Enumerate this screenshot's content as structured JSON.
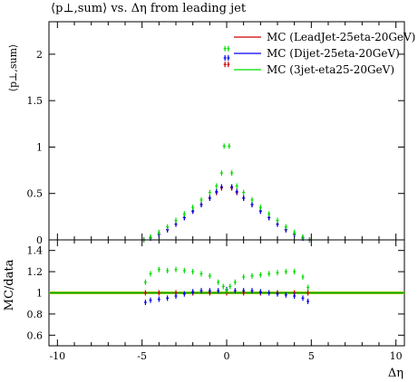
{
  "title": "⟨p⊥,sum⟩ vs. Δη from leading jet",
  "xlabel": "Δη",
  "ylabel_top": "⟨p⊥,sum⟩",
  "ylabel_ratio": "MC/data",
  "colors": {
    "lead": "#cc0000",
    "dijet": "#0000ee",
    "threejet": "#00dd00",
    "band": "#ffd700",
    "ref": "#00aa00"
  },
  "chart_data": [
    {
      "type": "scatter",
      "panel": "main",
      "xlim": [
        -10.5,
        10.5
      ],
      "ylim": [
        0,
        2.35
      ],
      "x_ticks": [
        -10,
        -5,
        0,
        5,
        10
      ],
      "y_ticks": [
        0,
        0.5,
        1,
        1.5,
        2
      ],
      "y_tick_labels": [
        "0",
        "0.5",
        "1",
        "1.5",
        "2"
      ],
      "legend_position": "top-right",
      "series": [
        {
          "name": "MC (LeadJet-25eta-20GeV)",
          "color": "#cc0000",
          "x": [
            -4.9,
            -4.5,
            -4.0,
            -3.5,
            -3.0,
            -2.5,
            -2.0,
            -1.5,
            -1.0,
            -0.6,
            -0.3,
            0.3,
            0.6,
            1.0,
            1.5,
            2.0,
            2.5,
            3.0,
            3.5,
            4.0,
            4.5,
            4.9,
            -0.1,
            0.1
          ],
          "y": [
            0.0,
            0.02,
            0.06,
            0.11,
            0.17,
            0.24,
            0.31,
            0.38,
            0.45,
            0.51,
            0.56,
            0.56,
            0.51,
            0.45,
            0.38,
            0.31,
            0.24,
            0.17,
            0.11,
            0.06,
            0.02,
            0.0,
            1.89,
            1.89
          ]
        },
        {
          "name": "MC (Dijet-25eta-20GeV)",
          "color": "#0000ee",
          "x": [
            -4.9,
            -4.5,
            -4.0,
            -3.5,
            -3.0,
            -2.5,
            -2.0,
            -1.5,
            -1.0,
            -0.6,
            -0.3,
            0.3,
            0.6,
            1.0,
            1.5,
            2.0,
            2.5,
            3.0,
            3.5,
            4.0,
            4.5,
            4.9,
            -0.1,
            0.1
          ],
          "y": [
            0.0,
            0.02,
            0.06,
            0.11,
            0.17,
            0.24,
            0.31,
            0.38,
            0.45,
            0.52,
            0.57,
            0.57,
            0.52,
            0.45,
            0.38,
            0.31,
            0.24,
            0.17,
            0.11,
            0.06,
            0.02,
            0.0,
            1.96,
            1.96
          ]
        },
        {
          "name": "MC (3jet-eta25-20GeV)",
          "color": "#00dd00",
          "x": [
            -4.9,
            -4.5,
            -4.0,
            -3.5,
            -3.0,
            -2.5,
            -2.0,
            -1.5,
            -1.0,
            -0.6,
            -0.3,
            -0.15,
            0.15,
            0.3,
            0.6,
            1.0,
            1.5,
            2.0,
            2.5,
            3.0,
            3.5,
            4.0,
            4.5,
            4.9,
            -0.1,
            0.1
          ],
          "y": [
            0.0,
            0.03,
            0.08,
            0.14,
            0.21,
            0.28,
            0.35,
            0.43,
            0.51,
            0.58,
            0.72,
            1.01,
            1.01,
            0.72,
            0.58,
            0.51,
            0.43,
            0.35,
            0.28,
            0.21,
            0.14,
            0.08,
            0.03,
            0.0,
            2.06,
            2.06
          ]
        }
      ]
    },
    {
      "type": "scatter",
      "panel": "ratio",
      "xlim": [
        -10.5,
        10.5
      ],
      "ylim": [
        0.5,
        1.5
      ],
      "x_ticks": [
        -10,
        -5,
        0,
        5,
        10
      ],
      "x_tick_labels": [
        "-10",
        "-5",
        "0",
        "5",
        "10"
      ],
      "y_ticks": [
        0.6,
        0.8,
        1.0,
        1.2,
        1.4
      ],
      "y_tick_labels": [
        "0.6",
        "0.8",
        "1",
        "1.2",
        "1.4"
      ],
      "reference_line": 1.0,
      "series": [
        {
          "name": "MC (LeadJet-25eta-20GeV)",
          "color": "#cc0000",
          "x": [
            -4.8,
            -4.0,
            -3.0,
            -2.0,
            -1.0,
            0.0,
            1.0,
            2.0,
            3.0,
            4.0,
            4.8
          ],
          "y": [
            1.0,
            1.0,
            1.0,
            1.0,
            1.0,
            1.0,
            1.0,
            1.0,
            1.0,
            1.0,
            1.0
          ]
        },
        {
          "name": "MC (Dijet-25eta-20GeV)",
          "color": "#0000ee",
          "x": [
            -4.8,
            -4.5,
            -4.0,
            -3.5,
            -3.0,
            -2.5,
            -2.0,
            -1.5,
            -1.0,
            -0.5,
            0.0,
            0.5,
            1.0,
            1.5,
            2.0,
            2.5,
            3.0,
            3.5,
            4.0,
            4.5,
            4.8
          ],
          "y": [
            0.91,
            0.93,
            0.94,
            0.95,
            0.97,
            0.99,
            1.01,
            1.02,
            1.02,
            1.02,
            1.03,
            1.02,
            1.02,
            1.02,
            1.01,
            1.0,
            0.99,
            0.98,
            0.97,
            0.95,
            0.92
          ]
        },
        {
          "name": "MC (3jet-eta25-20GeV)",
          "color": "#00dd00",
          "x": [
            -4.8,
            -4.5,
            -4.0,
            -3.5,
            -3.0,
            -2.5,
            -2.0,
            -1.5,
            -1.0,
            -0.5,
            -0.2,
            0.0,
            0.2,
            0.5,
            1.0,
            1.5,
            2.0,
            2.5,
            3.0,
            3.5,
            4.0,
            4.5,
            4.8
          ],
          "y": [
            1.1,
            1.18,
            1.22,
            1.21,
            1.22,
            1.21,
            1.2,
            1.18,
            1.16,
            1.1,
            1.06,
            1.02,
            1.06,
            1.1,
            1.15,
            1.16,
            1.17,
            1.18,
            1.19,
            1.2,
            1.2,
            1.15,
            1.05
          ]
        }
      ]
    }
  ]
}
